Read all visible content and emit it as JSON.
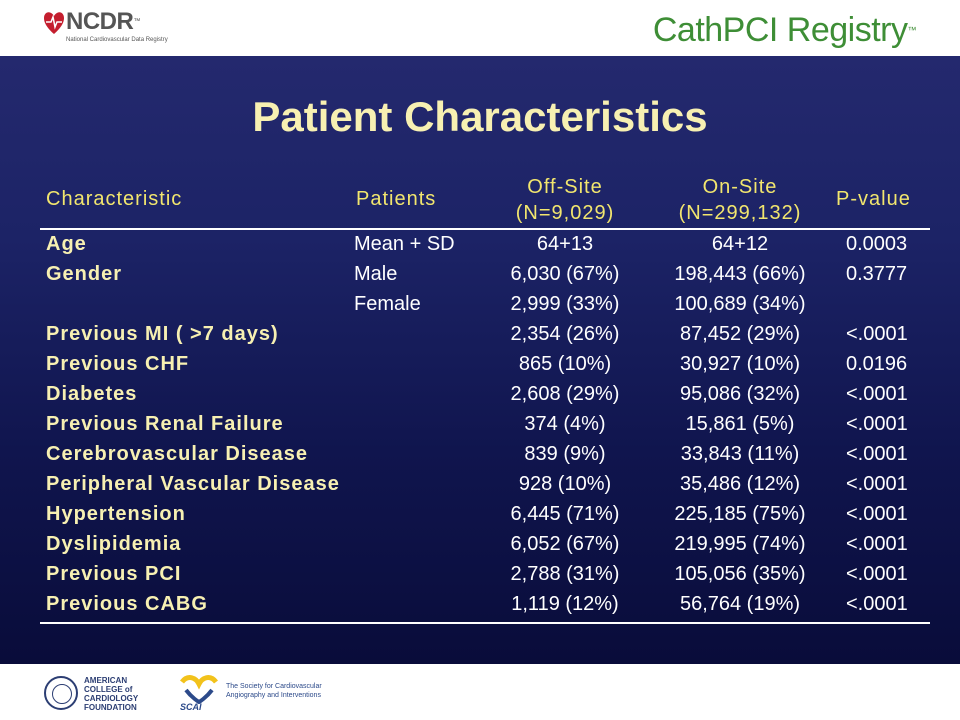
{
  "header": {
    "ncdr_name": "NCDR",
    "ncdr_tm": "™",
    "ncdr_subtitle": "National Cardiovascular Data Registry",
    "registry_name": "CathPCI Registry",
    "registry_tm": "™"
  },
  "slide": {
    "title": "Patient Characteristics",
    "columns": {
      "characteristic": "Characteristic",
      "patients": "Patients",
      "offsite_line1": "Off-Site",
      "offsite_line2": "(N=9,029)",
      "onsite_line1": "On-Site",
      "onsite_line2": "(N=299,132)",
      "pvalue": "P-value"
    },
    "rows": [
      {
        "characteristic": "Age",
        "patients": "Mean + SD",
        "offsite": "64+13",
        "onsite": "64+12",
        "pvalue": "0.0003"
      },
      {
        "characteristic": "Gender",
        "patients": "Male",
        "offsite": "6,030 (67%)",
        "onsite": "198,443 (66%)",
        "pvalue": "0.3777"
      },
      {
        "characteristic": "",
        "patients": "Female",
        "offsite": "2,999 (33%)",
        "onsite": "100,689 (34%)",
        "pvalue": ""
      },
      {
        "characteristic": "Previous MI ( >7 days)",
        "patients": "",
        "offsite": "2,354 (26%)",
        "onsite": "87,452 (29%)",
        "pvalue": "<.0001"
      },
      {
        "characteristic": "Previous CHF",
        "patients": "",
        "offsite": "865 (10%)",
        "onsite": "30,927 (10%)",
        "pvalue": "0.0196"
      },
      {
        "characteristic": "Diabetes",
        "patients": "",
        "offsite": "2,608 (29%)",
        "onsite": "95,086 (32%)",
        "pvalue": "<.0001"
      },
      {
        "characteristic": "Previous Renal Failure",
        "patients": "",
        "offsite": "374 (4%)",
        "onsite": "15,861 (5%)",
        "pvalue": "<.0001"
      },
      {
        "characteristic": "Cerebrovascular Disease",
        "patients": "",
        "offsite": "839 (9%)",
        "onsite": "33,843 (11%)",
        "pvalue": "<.0001"
      },
      {
        "characteristic": "Peripheral Vascular Disease",
        "patients": "",
        "offsite": "928 (10%)",
        "onsite": "35,486 (12%)",
        "pvalue": "<.0001"
      },
      {
        "characteristic": "Hypertension",
        "patients": "",
        "offsite": "6,445 (71%)",
        "onsite": "225,185 (75%)",
        "pvalue": "<.0001"
      },
      {
        "characteristic": "Dyslipidemia",
        "patients": "",
        "offsite": "6,052 (67%)",
        "onsite": "219,995 (74%)",
        "pvalue": "<.0001"
      },
      {
        "characteristic": "Previous PCI",
        "patients": "",
        "offsite": "2,788 (31%)",
        "onsite": "105,056 (35%)",
        "pvalue": "<.0001"
      },
      {
        "characteristic": "Previous CABG",
        "patients": "",
        "offsite": "1,119 (12%)",
        "onsite": "56,764 (19%)",
        "pvalue": "<.0001"
      }
    ]
  },
  "footer": {
    "acc_lines": [
      "AMERICAN",
      "COLLEGE of",
      "CARDIOLOGY",
      "FOUNDATION"
    ],
    "scai_name": "SCAI",
    "scai_lines": [
      "The Society for Cardiovascular",
      "Angiography and Interventions"
    ]
  },
  "colors": {
    "title": "#f7f0b2",
    "header_text": "#f2e66e",
    "value_text": "#ffffff",
    "background_top": "#24296e",
    "background_bottom": "#090c3a",
    "registry_green": "#3e8e36"
  },
  "icons": [
    "ncdr-heart-icon",
    "acc-seal-icon",
    "scai-heart-icon"
  ]
}
